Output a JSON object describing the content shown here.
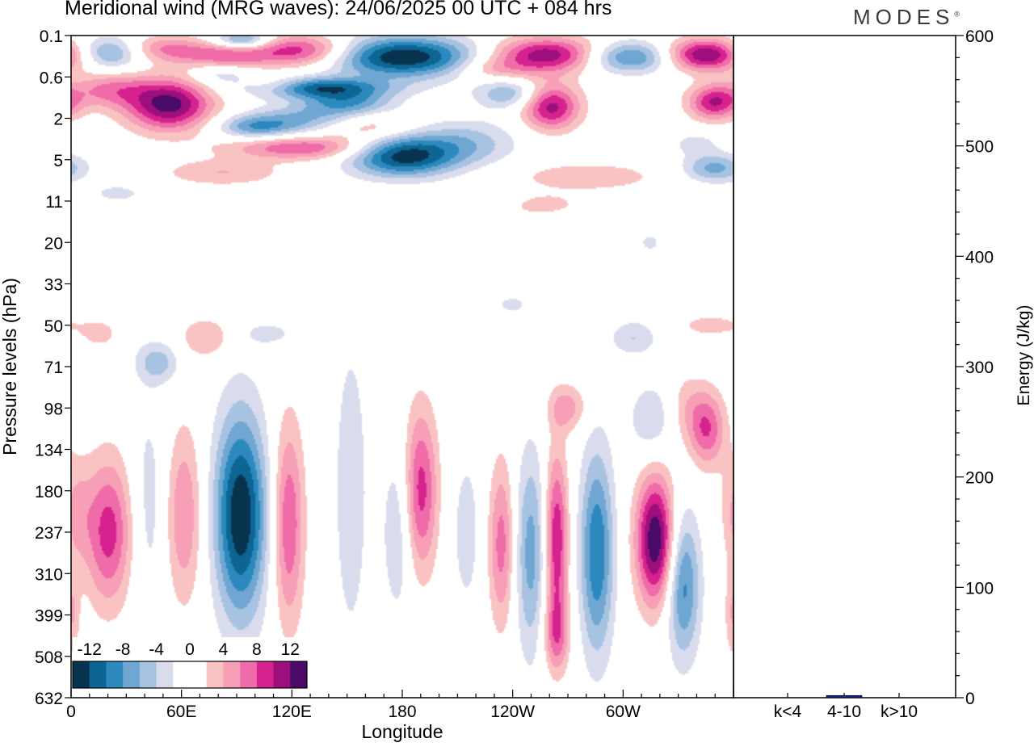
{
  "brand": {
    "name": "MODES",
    "mark": "®"
  },
  "chart_data": [
    {
      "type": "heatmap",
      "title": "Meridional wind (MRG waves):  24/06/2025  00 UTC  + 084 hrs",
      "xlabel": "Longitude",
      "ylabel": "Pressure levels (hPa)",
      "x_ticks": [
        {
          "lon": 0,
          "label": "0"
        },
        {
          "lon": 60,
          "label": "60E"
        },
        {
          "lon": 120,
          "label": "120E"
        },
        {
          "lon": 180,
          "label": "180"
        },
        {
          "lon": 240,
          "label": "120W"
        },
        {
          "lon": 300,
          "label": "60W"
        }
      ],
      "xlim": [
        0,
        360
      ],
      "y_levels": [
        "0.1",
        "0.6",
        "2",
        "5",
        "11",
        "20",
        "33",
        "50",
        "71",
        "98",
        "134",
        "180",
        "237",
        "310",
        "399",
        "508",
        "632"
      ],
      "y_scale": "ordinal (levels equally spaced, 0.1 hPa at top)",
      "colorbar": {
        "labels": [
          "-12",
          "-8",
          "-4",
          "0",
          "4",
          "8",
          "12"
        ],
        "colors": [
          "#08334f",
          "#0d6593",
          "#2c89bd",
          "#6fa7d2",
          "#a8c3e1",
          "#d9dcec",
          "#ffffff",
          "#ffffff",
          "#f9c3c3",
          "#f69fb7",
          "#ef6ca9",
          "#d6228e",
          "#9d0f7c",
          "#4a0a68"
        ],
        "placement": "bottom-left inside plot"
      },
      "blobs": [
        {
          "lon": 20,
          "lev": 0.4,
          "w": 28,
          "h": 0.55,
          "v": -8
        },
        {
          "lon": 48,
          "lev": 0.3,
          "w": 30,
          "h": 0.45,
          "v": 6
        },
        {
          "lon": 82,
          "lev": 0.45,
          "w": 34,
          "h": 0.5,
          "v": 7
        },
        {
          "lon": 125,
          "lev": 0.35,
          "w": 40,
          "h": 0.55,
          "v": 10
        },
        {
          "lon": 93,
          "lev": 0.1,
          "w": 22,
          "h": 0.3,
          "v": -9
        },
        {
          "lon": 180,
          "lev": 0.5,
          "w": 58,
          "h": 0.7,
          "v": -14
        },
        {
          "lon": 260,
          "lev": 0.45,
          "w": 45,
          "h": 0.6,
          "v": 12
        },
        {
          "lon": 303,
          "lev": 0.5,
          "w": 38,
          "h": 0.55,
          "v": -10
        },
        {
          "lon": 345,
          "lev": 0.45,
          "w": 33,
          "h": 0.55,
          "v": 13
        },
        {
          "lon": 53,
          "lev": 1.65,
          "w": 33,
          "h": 0.9,
          "v": 13
        },
        {
          "lon": 20,
          "lev": 1.3,
          "w": 30,
          "h": 0.6,
          "v": 6
        },
        {
          "lon": 134,
          "lev": 1.25,
          "w": 54,
          "h": 0.35,
          "v": -11
        },
        {
          "lon": 110,
          "lev": 1.2,
          "w": 24,
          "h": 0.3,
          "v": 4
        },
        {
          "lon": 150,
          "lev": 1.6,
          "w": 35,
          "h": 0.4,
          "v": -7
        },
        {
          "lon": 130,
          "lev": 2.0,
          "w": 45,
          "h": 0.5,
          "v": -6
        },
        {
          "lon": 100,
          "lev": 2.2,
          "w": 30,
          "h": 0.4,
          "v": -7
        },
        {
          "lon": 160,
          "lev": 2.2,
          "w": 34,
          "h": 0.45,
          "v": 5
        },
        {
          "lon": 180,
          "lev": 2.9,
          "w": 40,
          "h": 0.7,
          "v": -13
        },
        {
          "lon": 215,
          "lev": 2.6,
          "w": 40,
          "h": 0.8,
          "v": -5
        },
        {
          "lon": 261,
          "lev": 1.7,
          "w": 22,
          "h": 0.8,
          "v": 11
        },
        {
          "lon": 350,
          "lev": 1.6,
          "w": 20,
          "h": 0.6,
          "v": 10
        },
        {
          "lon": 238,
          "lev": 1.4,
          "w": 25,
          "h": 0.5,
          "v": -6
        },
        {
          "lon": 125,
          "lev": 2.7,
          "w": 55,
          "h": 0.4,
          "v": 8
        },
        {
          "lon": 82,
          "lev": 3.3,
          "w": 45,
          "h": 0.45,
          "v": 4
        },
        {
          "lon": 280,
          "lev": 3.4,
          "w": 70,
          "h": 0.6,
          "v": 3
        },
        {
          "lon": 250,
          "lev": 4.1,
          "w": 40,
          "h": 0.4,
          "v": 3
        },
        {
          "lon": 350,
          "lev": 3.2,
          "w": 25,
          "h": 0.5,
          "v": -7
        },
        {
          "lon": 340,
          "lev": 2.6,
          "w": 18,
          "h": 0.4,
          "v": -3
        },
        {
          "lon": 225,
          "lev": 4.0,
          "w": 28,
          "h": 0.5,
          "v": -3
        },
        {
          "lon": 230,
          "lev": 0.8,
          "w": 30,
          "h": 0.4,
          "v": 4
        },
        {
          "lon": 80,
          "lev": 0.9,
          "w": 25,
          "h": 0.35,
          "v": -4
        },
        {
          "lon": 25,
          "lev": 3.8,
          "w": 20,
          "h": 0.3,
          "v": -3
        },
        {
          "lon": 72,
          "lev": 5.0,
          "w": 15,
          "h": 0.2,
          "v": 2
        },
        {
          "lon": 240,
          "lev": 6.5,
          "w": 12,
          "h": 0.3,
          "v": -3
        },
        {
          "lon": 315,
          "lev": 5.0,
          "w": 8,
          "h": 0.3,
          "v": -3
        },
        {
          "lon": 235,
          "lev": 5.8,
          "w": 15,
          "h": 0.25,
          "v": 2
        },
        {
          "lon": 15,
          "lev": 7.2,
          "w": 15,
          "h": 0.5,
          "v": 3
        },
        {
          "lon": 47,
          "lev": 7.9,
          "w": 17,
          "h": 0.7,
          "v": -5
        },
        {
          "lon": 73,
          "lev": 7.3,
          "w": 20,
          "h": 0.7,
          "v": 4
        },
        {
          "lon": 108,
          "lev": 7.2,
          "w": 20,
          "h": 0.4,
          "v": -3
        },
        {
          "lon": 306,
          "lev": 7.3,
          "w": 18,
          "h": 0.6,
          "v": -4
        },
        {
          "lon": 348,
          "lev": 7.0,
          "w": 25,
          "h": 0.4,
          "v": 3
        },
        {
          "lon": 20,
          "lev": 12.0,
          "w": 18,
          "h": 2.5,
          "v": 9
        },
        {
          "lon": 2,
          "lev": 11.5,
          "w": 12,
          "h": 1.8,
          "v": 4
        },
        {
          "lon": 42,
          "lev": 11.3,
          "w": 14,
          "h": 3.8,
          "v": -3
        },
        {
          "lon": 61,
          "lev": 11.6,
          "w": 14,
          "h": 3.0,
          "v": 6
        },
        {
          "lon": 92,
          "lev": 11.6,
          "w": 20,
          "h": 3.5,
          "v": -14
        },
        {
          "lon": 118,
          "lev": 11.8,
          "w": 12,
          "h": 3.5,
          "v": 8
        },
        {
          "lon": 152,
          "lev": 11.0,
          "w": 16,
          "h": 6.5,
          "v": -3
        },
        {
          "lon": 178,
          "lev": 12.0,
          "w": 12,
          "h": 3.0,
          "v": -4
        },
        {
          "lon": 190,
          "lev": 11.0,
          "w": 13,
          "h": 2.8,
          "v": 9
        },
        {
          "lon": 215,
          "lev": 12.0,
          "w": 12,
          "h": 3.0,
          "v": -3
        },
        {
          "lon": 234,
          "lev": 12.3,
          "w": 10,
          "h": 2.8,
          "v": 7
        },
        {
          "lon": 250,
          "lev": 12.5,
          "w": 12,
          "h": 3.5,
          "v": -7
        },
        {
          "lon": 264,
          "lev": 12.2,
          "w": 9,
          "h": 3.0,
          "v": 10
        },
        {
          "lon": 264,
          "lev": 14.5,
          "w": 10,
          "h": 1.3,
          "v": 6
        },
        {
          "lon": 286,
          "lev": 12.5,
          "w": 13,
          "h": 3.5,
          "v": -10
        },
        {
          "lon": 318,
          "lev": 12.2,
          "w": 15,
          "h": 2.2,
          "v": 14
        },
        {
          "lon": 333,
          "lev": 13.3,
          "w": 13,
          "h": 2.5,
          "v": -9
        },
        {
          "lon": 346,
          "lev": 9.5,
          "w": 14,
          "h": 1.3,
          "v": 8
        },
        {
          "lon": 316,
          "lev": 9.3,
          "w": 18,
          "h": 1.3,
          "v": -4
        },
        {
          "lon": 334,
          "lev": 9.0,
          "w": 14,
          "h": 1.2,
          "v": 3
        },
        {
          "lon": 270,
          "lev": 9.0,
          "w": 15,
          "h": 0.8,
          "v": 5
        },
        {
          "lon": 360,
          "lev": 14.0,
          "w": 6,
          "h": 1.5,
          "v": 4
        }
      ]
    },
    {
      "type": "bar",
      "categories": [
        "k<4",
        "4-10",
        "k>10"
      ],
      "values": [
        0,
        2,
        0
      ],
      "ylabel": "Energy (J/kg)",
      "ylim": [
        0,
        600
      ],
      "y_ticks": [
        0,
        100,
        200,
        300,
        400,
        500,
        600
      ],
      "bar_color": "#1a1f8a"
    }
  ]
}
